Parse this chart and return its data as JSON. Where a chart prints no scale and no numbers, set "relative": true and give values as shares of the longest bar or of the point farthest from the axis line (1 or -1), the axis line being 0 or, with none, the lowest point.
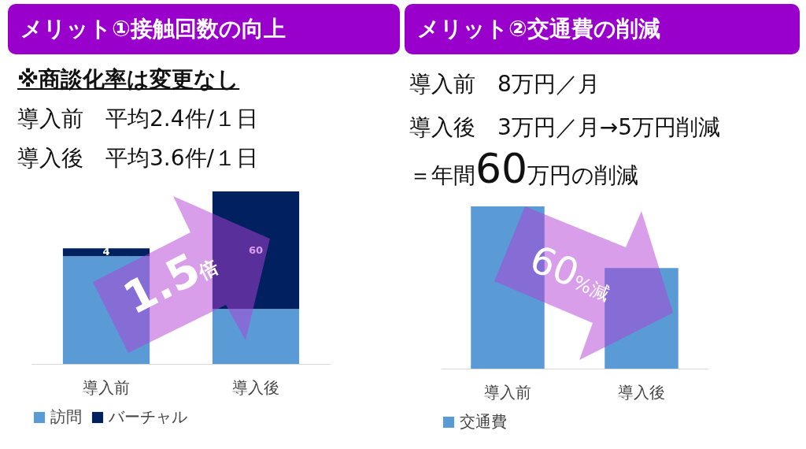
{
  "chart_data": [
    {
      "type": "bar",
      "title": "メリット①接触回数の向上",
      "subtitle": "※商談化率は変更なし",
      "annotations": [
        "導入前　平均2.4件/１日",
        "導入後　平均3.6件/１日",
        "1.5倍"
      ],
      "categories": [
        "導入前",
        "導入後"
      ],
      "stacked": true,
      "legend": "bottom",
      "tick_labels": "x",
      "series": [
        {
          "name": "訪問",
          "color": "#5b9bd5",
          "values": [
            55,
            28
          ]
        },
        {
          "name": "バーチャル",
          "color": "#002060",
          "values": [
            4,
            60
          ],
          "value_labels": [
            "4",
            "60"
          ]
        }
      ]
    },
    {
      "type": "bar",
      "title": "メリット②交通費の削減",
      "annotations": [
        "導入前　8万円／月",
        "導入後　3万円／月→5万円削減",
        "＝年間60万円の削減",
        "60%減"
      ],
      "categories": [
        "導入前",
        "導入後"
      ],
      "relative": true,
      "legend": "bottom",
      "series": [
        {
          "name": "交通費",
          "color": "#5b9bd5",
          "values": [
            1,
            0.62
          ]
        }
      ]
    }
  ]
}
